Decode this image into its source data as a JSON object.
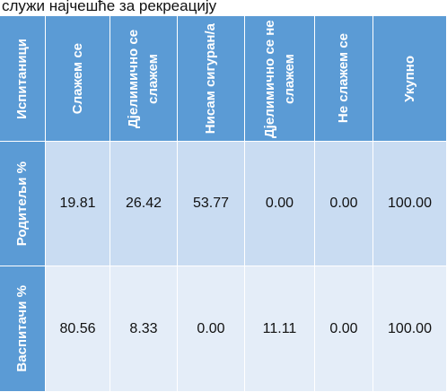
{
  "caption": "служи најчешће за рекреацију",
  "table": {
    "header": [
      "Испитаници",
      "Слажем се",
      "Дјелимично се слажем",
      "Нисам сигуран/а",
      "Дјелимично се не слажем",
      "Не слажем се",
      "Укупно"
    ],
    "rows": [
      [
        "Родитељи %",
        "19.81",
        "26.42",
        "53.77",
        "0.00",
        "0.00",
        "100.00"
      ],
      [
        "Васпитачи %",
        "80.56",
        "8.33",
        "0.00",
        "11.11",
        "0.00",
        "100.00"
      ]
    ]
  }
}
